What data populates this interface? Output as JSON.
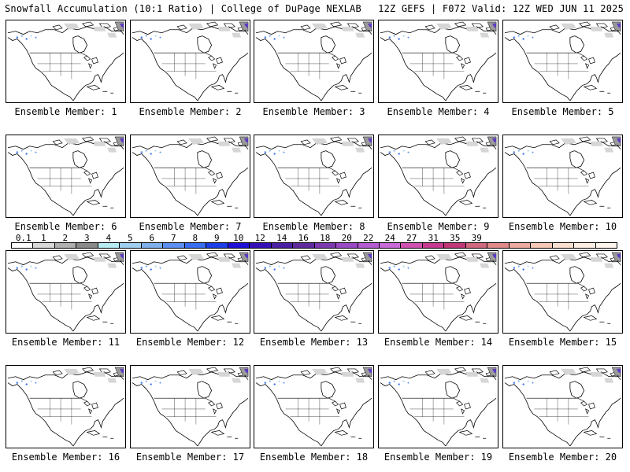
{
  "header": {
    "title_left": "Snowfall Accumulation (10:1 Ratio) | College of DuPage NEXLAB",
    "title_right": "12Z GEFS | F072 Valid: 12Z WED JUN 11 2025"
  },
  "panels": [
    {
      "label": "Ensemble Member: 1"
    },
    {
      "label": "Ensemble Member: 2"
    },
    {
      "label": "Ensemble Member: 3"
    },
    {
      "label": "Ensemble Member: 4"
    },
    {
      "label": "Ensemble Member: 5"
    },
    {
      "label": "Ensemble Member: 6"
    },
    {
      "label": "Ensemble Member: 7"
    },
    {
      "label": "Ensemble Member: 8"
    },
    {
      "label": "Ensemble Member: 9"
    },
    {
      "label": "Ensemble Member: 10"
    },
    {
      "label": "Ensemble Member: 11"
    },
    {
      "label": "Ensemble Member: 12"
    },
    {
      "label": "Ensemble Member: 13"
    },
    {
      "label": "Ensemble Member: 14"
    },
    {
      "label": "Ensemble Member: 15"
    },
    {
      "label": "Ensemble Member: 16"
    },
    {
      "label": "Ensemble Member: 17"
    },
    {
      "label": "Ensemble Member: 18"
    },
    {
      "label": "Ensemble Member: 19"
    },
    {
      "label": "Ensemble Member: 20"
    }
  ],
  "legend": {
    "ticks": [
      "0.1",
      "1",
      "2",
      "3",
      "4",
      "5",
      "6",
      "7",
      "8",
      "9",
      "10",
      "12",
      "14",
      "16",
      "18",
      "20",
      "22",
      "24",
      "27",
      "31",
      "35",
      "39"
    ],
    "colors": [
      "#ffffff",
      "#d9d9d9",
      "#b0b0b0",
      "#8a8a8a",
      "#b6ecf2",
      "#9fd0ef",
      "#7eb0ec",
      "#5c8ff0",
      "#3a6ef2",
      "#1c3ee8",
      "#1f10d8",
      "#3410b8",
      "#4a20a4",
      "#5e2a9e",
      "#7c3ab0",
      "#9a4ac4",
      "#b45ad2",
      "#c86ad8",
      "#d050b0",
      "#c83a90",
      "#c03878",
      "#d06880",
      "#e08a8a",
      "#eeaaa0",
      "#f6c8b8",
      "#fae0d0",
      "#fdeee4",
      "#fff6ee"
    ]
  }
}
